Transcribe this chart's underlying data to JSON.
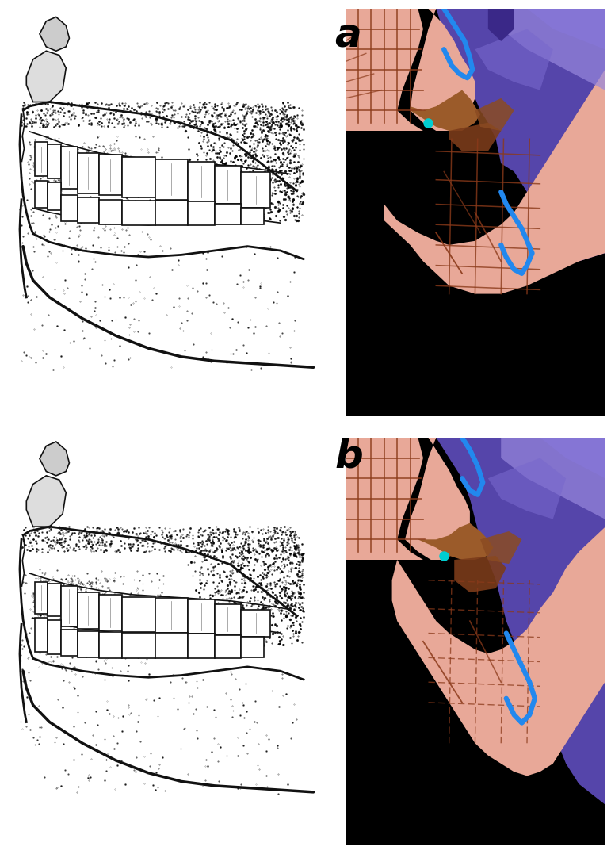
{
  "fig_width": 7.71,
  "fig_height": 10.82,
  "dpi": 100,
  "bg_color": "#ffffff",
  "label_a": "a",
  "label_b": "b",
  "label_fontsize": 36,
  "label_fontweight": "bold",
  "skin_pink": "#E8A898",
  "skin_mid": "#D4907A",
  "skin_dark": "#C07868",
  "brown_mesh": "#8B3A1A",
  "blue_outline": "#2288EE",
  "purple_dark": "#3A2888",
  "purple_mid": "#5545AA",
  "purple_light": "#7868CC",
  "purple_pale": "#9888DD",
  "teal_dot": "#00CED1",
  "black": "#000000",
  "white": "#ffffff"
}
